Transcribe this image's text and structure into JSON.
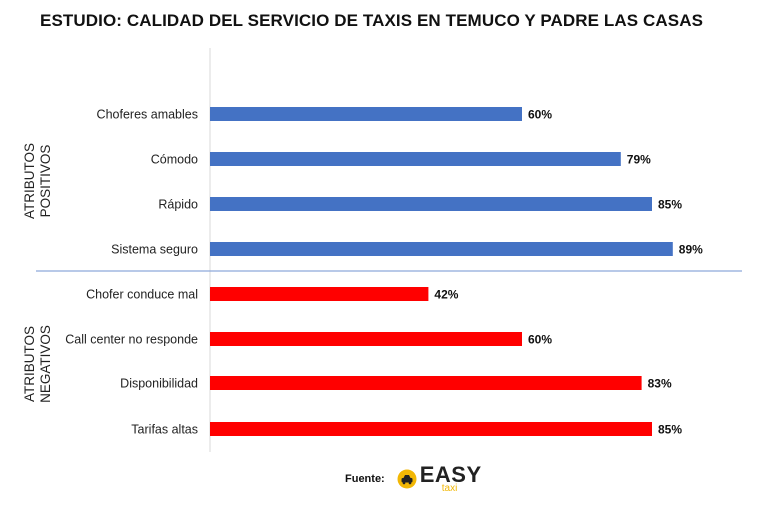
{
  "title": "ESTUDIO: CALIDAD DEL SERVICIO DE TAXIS EN TEMUCO Y PADRE LAS CASAS",
  "footer": {
    "source_label": "Fuente:",
    "logo_word": "EASY",
    "logo_sub": "taxi",
    "logo_icon": "taxi-car-icon"
  },
  "chart_data": {
    "type": "bar",
    "orientation": "horizontal",
    "xlim": [
      0,
      100
    ],
    "value_suffix": "%",
    "grid": false,
    "groups": [
      {
        "name": "ATRIBUTOS POSITIVOS",
        "color": "#4472C4",
        "categories": [
          "Choferes amables",
          "Cómodo",
          "Rápido",
          "Sistema seguro"
        ],
        "values": [
          60,
          79,
          85,
          89
        ]
      },
      {
        "name": "ATRIBUTOS NEGATIVOS",
        "color": "#FF0000",
        "categories": [
          "Chofer conduce mal",
          "Call center no responde",
          "Disponibilidad",
          "Tarifas altas"
        ],
        "values": [
          42,
          60,
          83,
          85
        ]
      }
    ]
  }
}
